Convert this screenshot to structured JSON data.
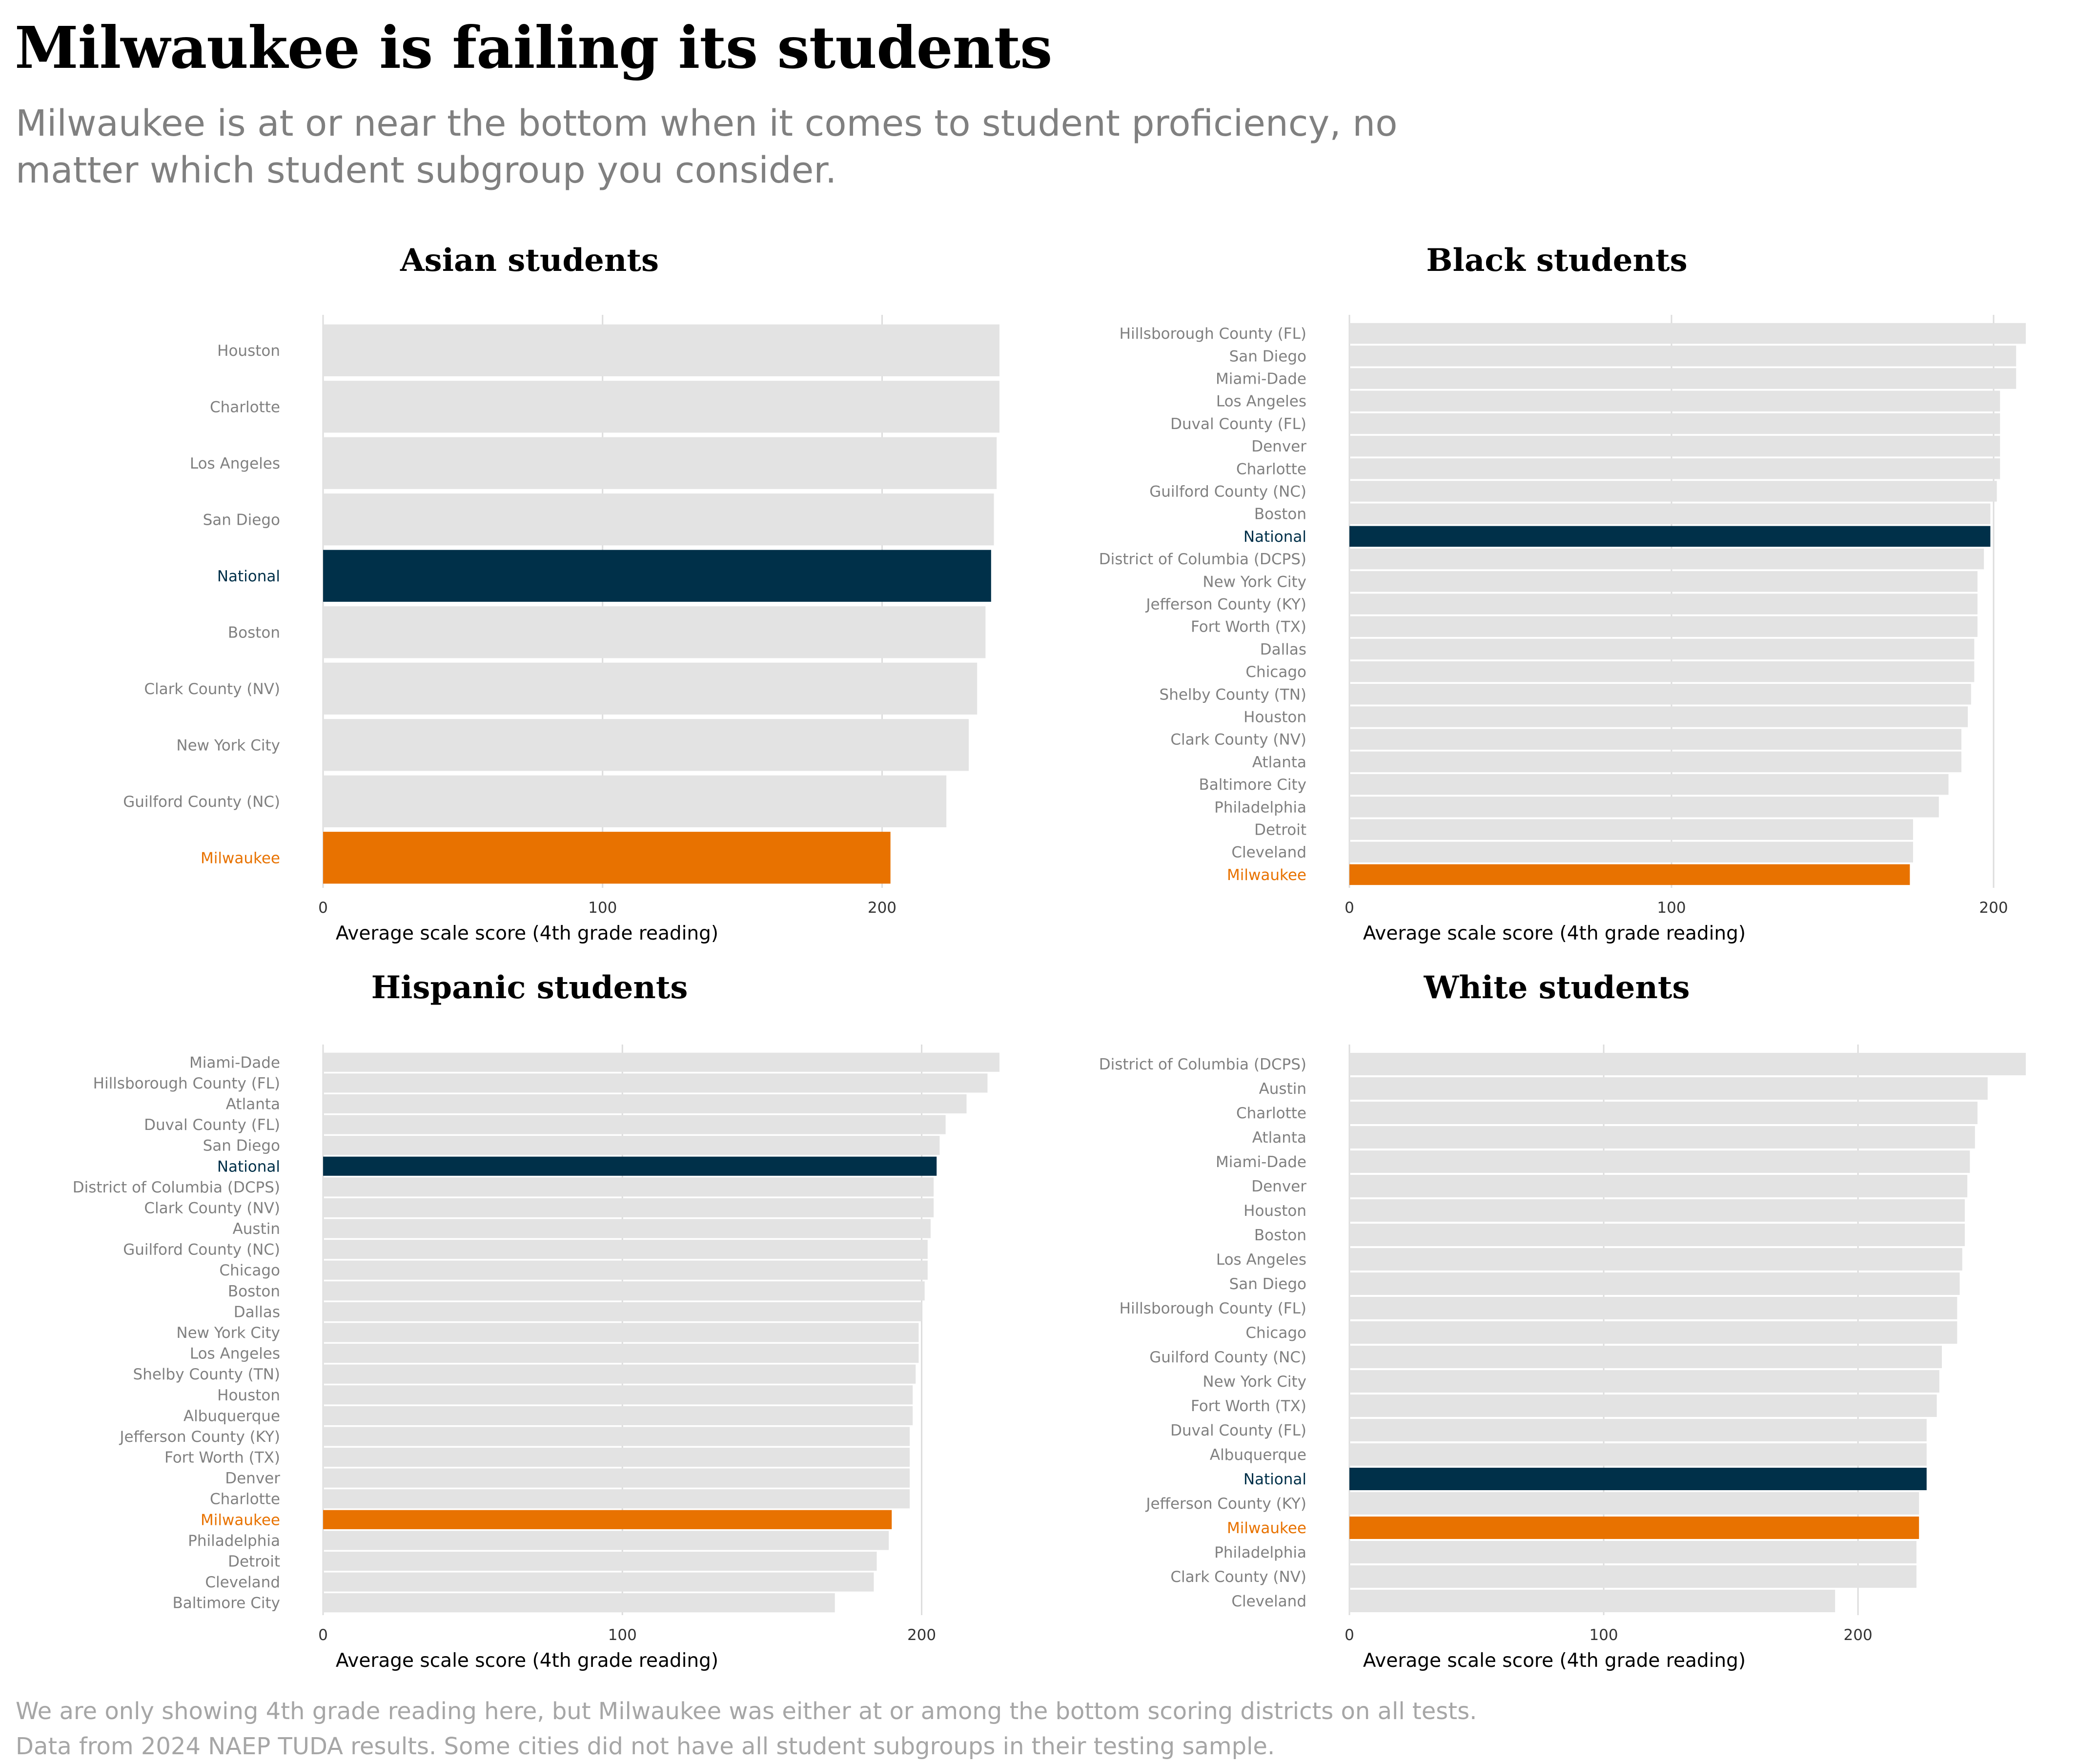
{
  "title": "Milwaukee is failing its students",
  "subtitle": "Milwaukee is at or near the bottom when it comes to student proficiency, no matter which student subgroup you consider.",
  "footer": {
    "note": "We are only showing 4th grade reading here, but Milwaukee was either at or among the bottom scoring districts on all tests.",
    "source": "Data from 2024 NAEP TUDA results. Some cities did not have all student subgroups in their testing sample."
  },
  "colors": {
    "default": "#e3e3e3",
    "national": "#003049",
    "milwaukee": "#e87200",
    "label_default": "#808080"
  },
  "chart_data": [
    {
      "type": "bar",
      "orientation": "horizontal",
      "title": "Asian students",
      "xlabel": "Average scale score (4th grade reading)",
      "xlim": [
        0,
        242
      ],
      "xticks": [
        0,
        100,
        200
      ],
      "categories": [
        "Houston",
        "Charlotte",
        "Los Angeles",
        "San Diego",
        "National",
        "Boston",
        "Clark County (NV)",
        "New York City",
        "Guilford County (NC)",
        "Milwaukee"
      ],
      "values": [
        242,
        242,
        241,
        240,
        239,
        237,
        234,
        231,
        223,
        203
      ]
    },
    {
      "type": "bar",
      "orientation": "horizontal",
      "title": "Black students",
      "xlabel": "Average scale score (4th grade reading)",
      "xlim": [
        0,
        210
      ],
      "xticks": [
        0,
        100,
        200
      ],
      "categories": [
        "Hillsborough County (FL)",
        "San Diego",
        "Miami-Dade",
        "Los Angeles",
        "Duval County (FL)",
        "Denver",
        "Charlotte",
        "Guilford County (NC)",
        "Boston",
        "National",
        "District of Columbia (DCPS)",
        "New York City",
        "Jefferson County (KY)",
        "Fort Worth (TX)",
        "Dallas",
        "Chicago",
        "Shelby County (TN)",
        "Houston",
        "Clark County (NV)",
        "Atlanta",
        "Baltimore City",
        "Philadelphia",
        "Detroit",
        "Cleveland",
        "Milwaukee"
      ],
      "values": [
        210,
        207,
        207,
        202,
        202,
        202,
        202,
        201,
        199,
        199,
        197,
        195,
        195,
        195,
        194,
        194,
        193,
        192,
        190,
        190,
        186,
        183,
        175,
        175,
        174
      ]
    },
    {
      "type": "bar",
      "orientation": "horizontal",
      "title": "Hispanic students",
      "xlabel": "Average scale score (4th grade reading)",
      "xlim": [
        0,
        226
      ],
      "xticks": [
        0,
        100,
        200
      ],
      "categories": [
        "Miami-Dade",
        "Hillsborough County (FL)",
        "Atlanta",
        "Duval County (FL)",
        "San Diego",
        "National",
        "District of Columbia (DCPS)",
        "Clark County (NV)",
        "Austin",
        "Guilford County (NC)",
        "Chicago",
        "Boston",
        "Dallas",
        "New York City",
        "Los Angeles",
        "Shelby County (TN)",
        "Houston",
        "Albuquerque",
        "Jefferson County (KY)",
        "Fort Worth (TX)",
        "Denver",
        "Charlotte",
        "Milwaukee",
        "Philadelphia",
        "Detroit",
        "Cleveland",
        "Baltimore City"
      ],
      "values": [
        226,
        222,
        215,
        208,
        206,
        205,
        204,
        204,
        203,
        202,
        202,
        201,
        200,
        199,
        199,
        198,
        197,
        197,
        196,
        196,
        196,
        196,
        190,
        189,
        185,
        184,
        171
      ]
    },
    {
      "type": "bar",
      "orientation": "horizontal",
      "title": "White students",
      "xlabel": "Average scale score (4th grade reading)",
      "xlim": [
        0,
        266
      ],
      "xticks": [
        0,
        100,
        200
      ],
      "categories": [
        "District of Columbia (DCPS)",
        "Austin",
        "Charlotte",
        "Atlanta",
        "Miami-Dade",
        "Denver",
        "Houston",
        "Boston",
        "Los Angeles",
        "San Diego",
        "Hillsborough County (FL)",
        "Chicago",
        "Guilford County (NC)",
        "New York City",
        "Fort Worth (TX)",
        "Duval County (FL)",
        "Albuquerque",
        "National",
        "Jefferson County (KY)",
        "Milwaukee",
        "Philadelphia",
        "Clark County (NV)",
        "Cleveland"
      ],
      "values": [
        266,
        251,
        247,
        246,
        244,
        243,
        242,
        242,
        241,
        240,
        239,
        239,
        233,
        232,
        231,
        227,
        227,
        227,
        224,
        224,
        223,
        223,
        191
      ]
    }
  ]
}
